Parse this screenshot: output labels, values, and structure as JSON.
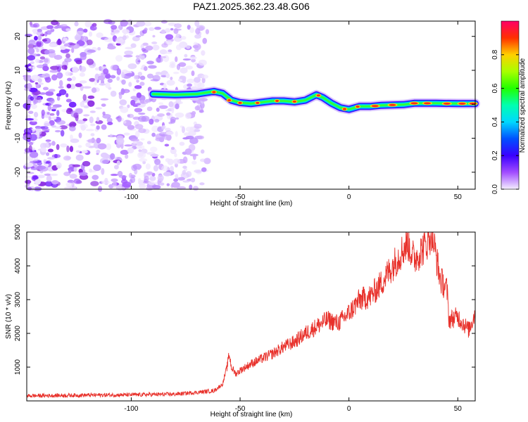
{
  "title": "PAZ1.2025.362.23.48.G06",
  "chart_data": [
    {
      "type": "heatmap",
      "name": "spectrogram",
      "xlabel": "Height of straight line (km)",
      "ylabel": "Frequency (Hz)",
      "xlim": [
        -148,
        58
      ],
      "ylim": [
        -25,
        24.5
      ],
      "xticks": [
        -100,
        -50,
        0,
        50
      ],
      "yticks": [
        -20,
        -10,
        0,
        10,
        20
      ],
      "ridge": {
        "x": [
          -90,
          -80,
          -70,
          -62,
          -58,
          -54,
          -50,
          -45,
          -40,
          -35,
          -30,
          -25,
          -20,
          -15,
          -12,
          -8,
          -4,
          0,
          5,
          10,
          15,
          20,
          25,
          30,
          40,
          50,
          58
        ],
        "frequency": [
          3,
          2.8,
          3,
          3.8,
          3.2,
          1.2,
          0.5,
          0.2,
          0.6,
          1.0,
          1.0,
          0.7,
          1.2,
          2.8,
          2.0,
          0.3,
          -1.0,
          -1.5,
          -0.6,
          -0.6,
          -0.3,
          -0.2,
          -0.1,
          0.3,
          0.3,
          0.2,
          0.2
        ]
      },
      "noise_extent_x": [
        -148,
        -65
      ],
      "colorbar": {
        "label": "Normalized spectral amplitude",
        "range": [
          0,
          1
        ],
        "ticks": [
          "0.0",
          "0.2",
          "0.4",
          "0.6",
          "0.8"
        ]
      }
    },
    {
      "type": "line",
      "name": "snr",
      "xlabel": "Height of straight line (km)",
      "ylabel": "SNR (10 * v/v)",
      "xlim": [
        -148,
        58
      ],
      "ylim": [
        0,
        5000
      ],
      "xticks": [
        -100,
        -50,
        0,
        50
      ],
      "yticks": [
        1000,
        2000,
        3000,
        4000,
        5000
      ],
      "color": "#e8302a",
      "x": [
        -148,
        -120,
        -100,
        -80,
        -70,
        -62,
        -58,
        -56,
        -55,
        -54,
        -52,
        -50,
        -45,
        -40,
        -35,
        -30,
        -25,
        -20,
        -15,
        -10,
        -5,
        0,
        5,
        10,
        15,
        20,
        25,
        27,
        30,
        35,
        38,
        40,
        42,
        45,
        46,
        50,
        55,
        58
      ],
      "y": [
        150,
        170,
        180,
        200,
        250,
        300,
        500,
        1000,
        1400,
        1000,
        800,
        900,
        1100,
        1250,
        1400,
        1600,
        1750,
        2000,
        2200,
        2400,
        2300,
        2600,
        3000,
        3100,
        3500,
        4000,
        4500,
        4700,
        4200,
        4600,
        5000,
        4300,
        3600,
        3300,
        2400,
        2500,
        2100,
        2600
      ]
    }
  ],
  "colors": {
    "axis": "#000000",
    "snr_line": "#e8302a"
  }
}
